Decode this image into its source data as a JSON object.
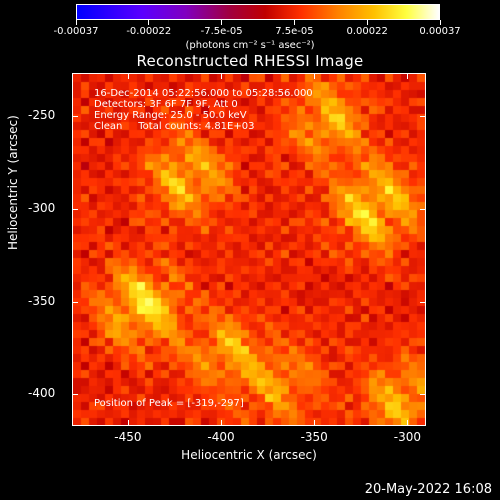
{
  "colorbar": {
    "labels": [
      "-0.00037",
      "-0.00022",
      "-7.5e-05",
      "7.5e-05",
      "0.00022",
      "0.00037"
    ],
    "units": "(photons cm⁻² s⁻¹ asec⁻²)",
    "colors": [
      "#0000ff",
      "#5a00ff",
      "#8000c0",
      "#a00040",
      "#c00000",
      "#ff3000",
      "#ff8000",
      "#ffc000",
      "#ffff40",
      "#ffffff"
    ]
  },
  "title": "Reconstructed RHESSI Image",
  "info": {
    "line1": "16-Dec-2014 05:22:56.000 to 05:28:56.000",
    "line2": "Detectors: 3F 6F 7F 9F, Att 0",
    "line3": "Energy Range: 25.0 - 50.0 keV",
    "line4": "Clean     Total counts: 4.81E+03"
  },
  "peak": "Position of Peak = [-319,-297]",
  "chart_data": {
    "type": "heatmap",
    "title": "Reconstructed RHESSI Image",
    "xlabel": "Heliocentric X (arcsec)",
    "ylabel": "Heliocentric Y (arcsec)",
    "xlim": [
      -480,
      -290
    ],
    "ylim": [
      -417,
      -227
    ],
    "xticks": [
      -450,
      -400,
      -350,
      -300
    ],
    "yticks": [
      -250,
      -300,
      -350,
      -400
    ],
    "colorbar_range": [
      -0.00037,
      0.00037
    ],
    "peak_position": [
      -319,
      -297
    ],
    "hotspots": [
      {
        "x": -446,
        "y": -350,
        "level": 1.0
      },
      {
        "x": -420,
        "y": -280,
        "level": 0.85
      },
      {
        "x": -319,
        "y": -297,
        "level": 1.0
      },
      {
        "x": -345,
        "y": -250,
        "level": 0.7
      },
      {
        "x": -400,
        "y": -375,
        "level": 0.65
      },
      {
        "x": -305,
        "y": -400,
        "level": 0.75
      },
      {
        "x": -370,
        "y": -395,
        "level": 0.55
      }
    ]
  },
  "timestamp": "20-May-2022 16:08"
}
